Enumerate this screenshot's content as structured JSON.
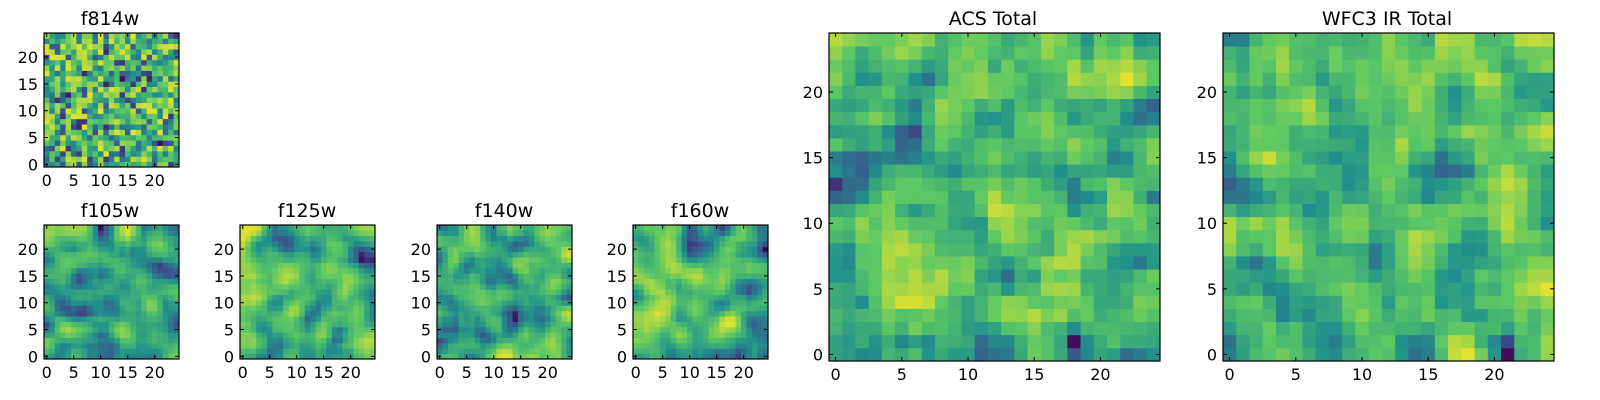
{
  "chart_data": [
    {
      "type": "heatmap",
      "title": "f814w",
      "pixel_shape": [
        25,
        25
      ],
      "xlim": [
        0,
        24
      ],
      "ylim": [
        0,
        24
      ],
      "xticks": [
        0,
        5,
        10,
        15,
        20
      ],
      "yticks": [
        0,
        5,
        10,
        15,
        20
      ],
      "colormap": "viridis",
      "pattern": "fine-grained noise"
    },
    {
      "type": "heatmap",
      "title": "f105w",
      "pixel_shape": [
        25,
        25
      ],
      "xlim": [
        0,
        24
      ],
      "ylim": [
        0,
        24
      ],
      "xticks": [
        0,
        5,
        10,
        15,
        20
      ],
      "yticks": [
        0,
        5,
        10,
        15,
        20
      ],
      "colormap": "viridis",
      "pattern": "smooth correlated noise"
    },
    {
      "type": "heatmap",
      "title": "f125w",
      "pixel_shape": [
        25,
        25
      ],
      "xlim": [
        0,
        24
      ],
      "ylim": [
        0,
        24
      ],
      "xticks": [
        0,
        5,
        10,
        15,
        20
      ],
      "yticks": [
        0,
        5,
        10,
        15,
        20
      ],
      "colormap": "viridis",
      "pattern": "smooth correlated noise"
    },
    {
      "type": "heatmap",
      "title": "f140w",
      "pixel_shape": [
        25,
        25
      ],
      "xlim": [
        0,
        24
      ],
      "ylim": [
        0,
        24
      ],
      "xticks": [
        0,
        5,
        10,
        15,
        20
      ],
      "yticks": [
        0,
        5,
        10,
        15,
        20
      ],
      "colormap": "viridis",
      "pattern": "smooth correlated noise"
    },
    {
      "type": "heatmap",
      "title": "f160w",
      "pixel_shape": [
        25,
        25
      ],
      "xlim": [
        0,
        24
      ],
      "ylim": [
        0,
        24
      ],
      "xticks": [
        0,
        5,
        10,
        15,
        20
      ],
      "yticks": [
        0,
        5,
        10,
        15,
        20
      ],
      "colormap": "viridis",
      "pattern": "smooth correlated noise"
    },
    {
      "type": "heatmap",
      "title": "ACS Total",
      "pixel_shape": [
        25,
        25
      ],
      "xlim": [
        0,
        24
      ],
      "ylim": [
        0,
        24
      ],
      "xticks": [
        0,
        5,
        10,
        15,
        20
      ],
      "yticks": [
        0,
        5,
        10,
        15,
        20
      ],
      "colormap": "viridis",
      "pattern": "coarse noise"
    },
    {
      "type": "heatmap",
      "title": "WFC3 IR Total",
      "pixel_shape": [
        25,
        25
      ],
      "xlim": [
        0,
        24
      ],
      "ylim": [
        0,
        24
      ],
      "xticks": [
        0,
        5,
        10,
        15,
        20
      ],
      "yticks": [
        0,
        5,
        10,
        15,
        20
      ],
      "colormap": "viridis",
      "pattern": "coarse noise"
    }
  ],
  "colors": {
    "viridis_dark": "#440154",
    "viridis_blue": "#3b528b",
    "viridis_teal": "#21908d",
    "viridis_green": "#5dc863",
    "viridis_yellow": "#fde725",
    "background": "#ffffff"
  }
}
